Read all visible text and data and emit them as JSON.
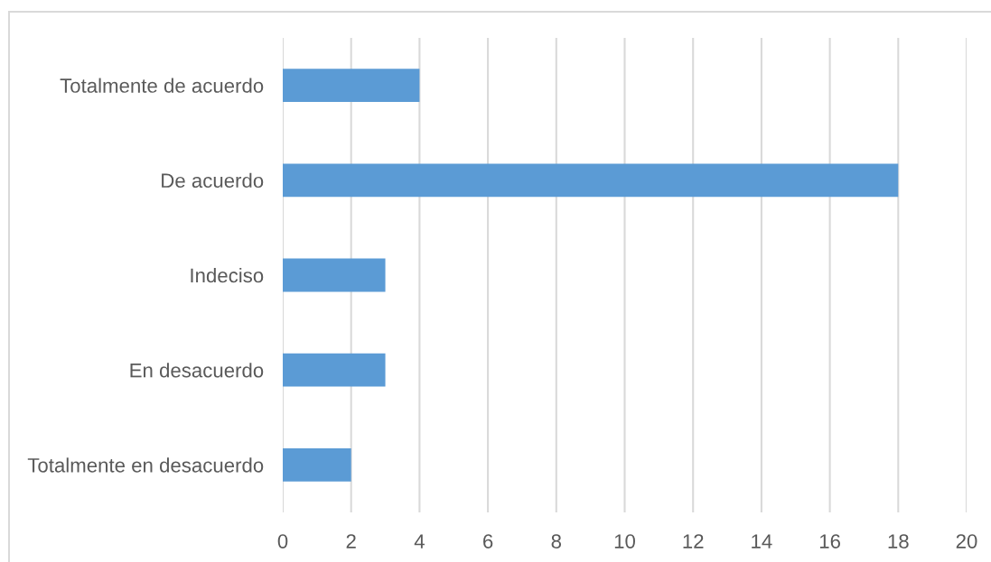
{
  "chart_data": {
    "type": "bar",
    "orientation": "horizontal",
    "categories": [
      "Totalmente de acuerdo",
      "De acuerdo",
      "Indeciso",
      "En desacuerdo",
      "Totalmente en desacuerdo"
    ],
    "values": [
      4,
      18,
      3,
      3,
      2
    ],
    "color": "#5b9bd5",
    "xlim": [
      0,
      20
    ],
    "xticks": [
      0,
      2,
      4,
      6,
      8,
      10,
      12,
      14,
      16,
      18,
      20
    ],
    "grid": "x"
  }
}
